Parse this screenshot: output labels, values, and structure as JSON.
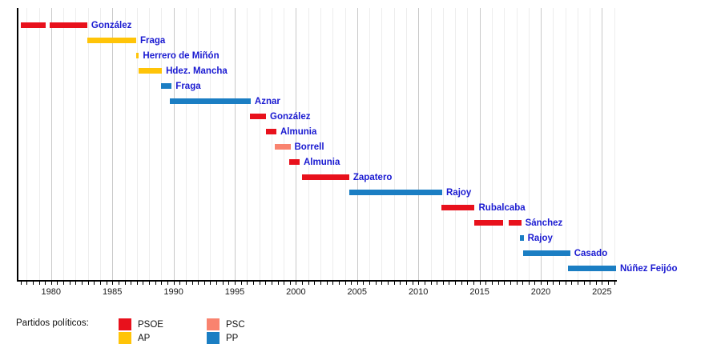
{
  "chart_data": {
    "type": "bar",
    "subtype": "gantt-timeline",
    "title": "",
    "xlabel": "",
    "ylabel": "",
    "axis": {
      "x_min": 1977.2,
      "x_max": 2026.15,
      "tick_years": [
        1980,
        1985,
        1990,
        1995,
        2000,
        2005,
        2010,
        2015,
        2020,
        2025
      ],
      "gridline_interval_years": 1,
      "major_gridline_interval_years": 5,
      "tick_interval_years": 0.5,
      "grid": "on",
      "legend_position": "bottom"
    },
    "parties": {
      "PSOE": "#e8111c",
      "AP": "#ffc408",
      "PSC": "#f9836f",
      "PP": "#1b7ec3"
    },
    "rows": [
      {
        "label": "González",
        "party": "PSOE",
        "segments": [
          [
            1977.55,
            1979.55
          ],
          [
            1979.85,
            1982.95
          ]
        ]
      },
      {
        "label": "Fraga",
        "party": "AP",
        "segments": [
          [
            1982.95,
            1986.95
          ]
        ]
      },
      {
        "label": "Herrero de Miñón",
        "party": "AP",
        "segments": [
          [
            1986.95,
            1987.17
          ]
        ]
      },
      {
        "label": "Hdez. Mancha",
        "party": "AP",
        "segments": [
          [
            1987.17,
            1989.05
          ]
        ]
      },
      {
        "label": "Fraga",
        "party": "PP",
        "segments": [
          [
            1989.0,
            1989.85
          ]
        ]
      },
      {
        "label": "Aznar",
        "party": "PP",
        "segments": [
          [
            1989.7,
            1996.3
          ]
        ]
      },
      {
        "label": "González",
        "party": "PSOE",
        "segments": [
          [
            1996.25,
            1997.55
          ]
        ]
      },
      {
        "label": "Almunia",
        "party": "PSOE",
        "segments": [
          [
            1997.55,
            1998.4
          ]
        ]
      },
      {
        "label": "Borrell",
        "party": "PSC",
        "segments": [
          [
            1998.25,
            1999.55
          ]
        ]
      },
      {
        "label": "Almunia",
        "party": "PSOE",
        "segments": [
          [
            1999.45,
            2000.3
          ]
        ]
      },
      {
        "label": "Zapatero",
        "party": "PSOE",
        "segments": [
          [
            2000.5,
            2004.35
          ]
        ]
      },
      {
        "label": "Rajoy",
        "party": "PP",
        "segments": [
          [
            2004.35,
            2011.95
          ]
        ]
      },
      {
        "label": "Rubalcaba",
        "party": "PSOE",
        "segments": [
          [
            2011.9,
            2014.6
          ]
        ]
      },
      {
        "label": "Sánchez",
        "party": "PSOE",
        "segments": [
          [
            2014.55,
            2016.9
          ],
          [
            2017.35,
            2018.4
          ]
        ]
      },
      {
        "label": "Rajoy",
        "party": "PP",
        "segments": [
          [
            2018.3,
            2018.6
          ]
        ]
      },
      {
        "label": "Casado",
        "party": "PP",
        "segments": [
          [
            2018.55,
            2022.4
          ]
        ]
      },
      {
        "label": "Núñez Feijóo",
        "party": "PP",
        "segments": [
          [
            2022.2,
            2026.15
          ]
        ]
      }
    ]
  },
  "legend": {
    "title": "Partidos políticos:",
    "items": [
      {
        "label": "PSOE",
        "color": "#e8111c"
      },
      {
        "label": "AP",
        "color": "#ffc408"
      },
      {
        "label": "PSC",
        "color": "#f9836f"
      },
      {
        "label": "PP",
        "color": "#1b7ec3"
      }
    ]
  },
  "colors": {
    "bar_label_text": "#1a1ad1",
    "grid_minor": "#ededed",
    "grid_major": "#c9c9c9",
    "axis": "#000000",
    "background": "#ffffff"
  }
}
